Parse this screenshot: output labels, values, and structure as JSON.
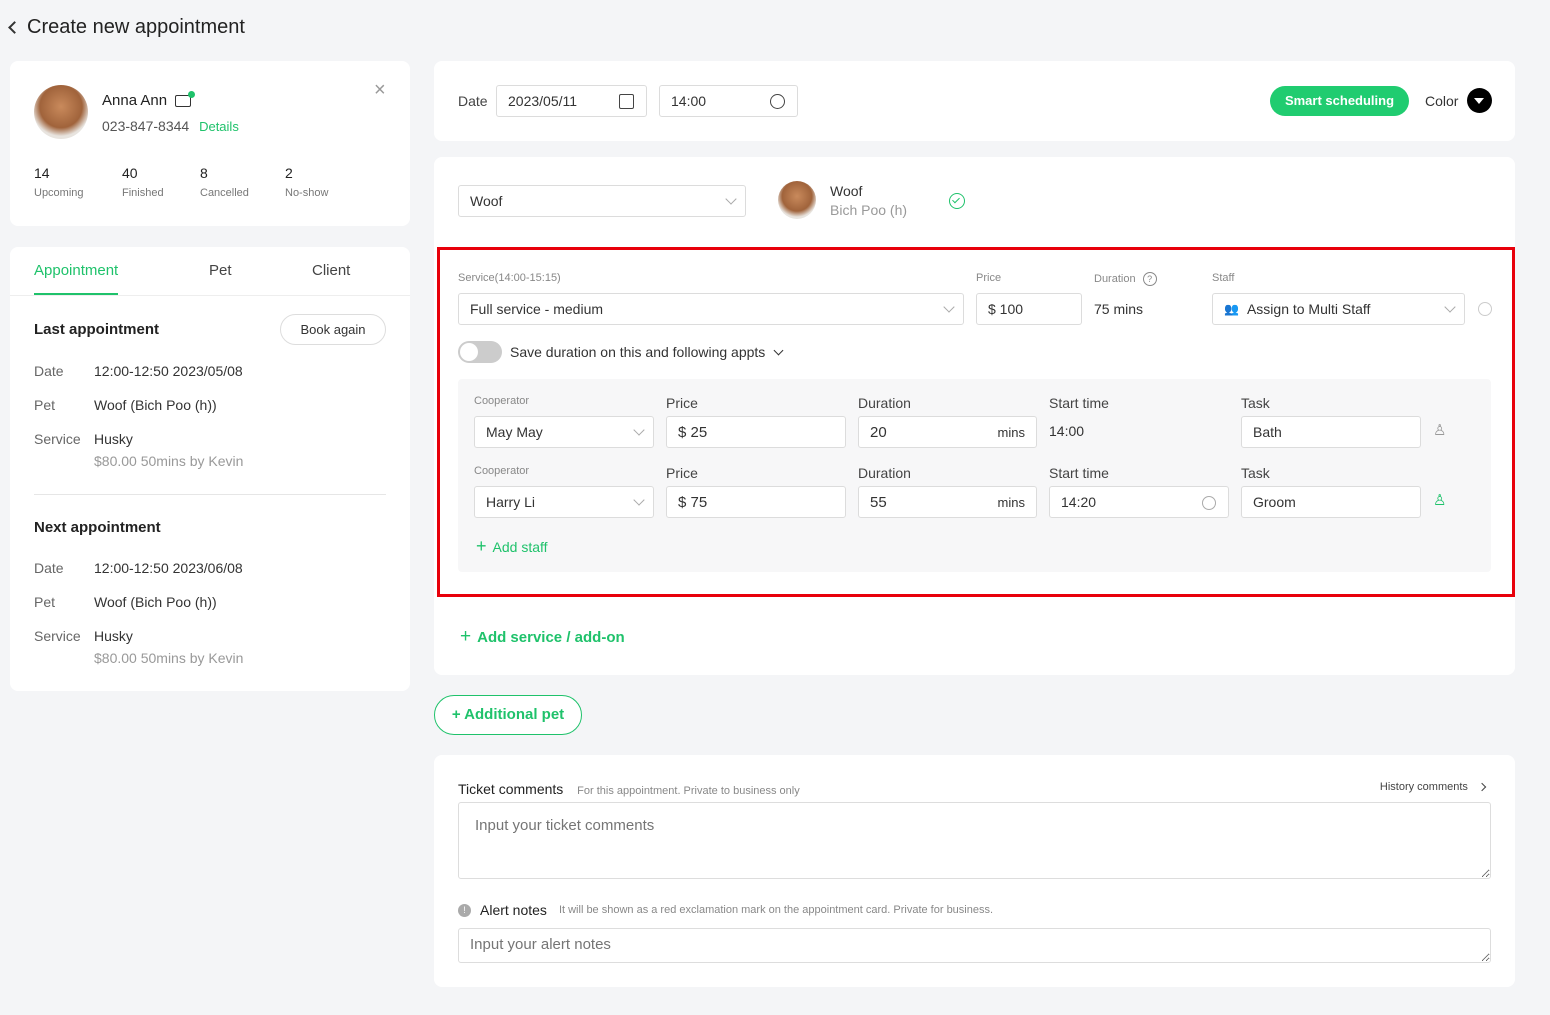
{
  "header": {
    "title": "Create new appointment"
  },
  "client": {
    "name": "Anna Ann",
    "phone": "023-847-8344",
    "details": "Details",
    "stats": [
      {
        "value": "14",
        "label": "Upcoming"
      },
      {
        "value": "40",
        "label": "Finished"
      },
      {
        "value": "8",
        "label": "Cancelled"
      },
      {
        "value": "2",
        "label": "No-show"
      }
    ]
  },
  "tabs": [
    {
      "label": "Appointment",
      "active": true
    },
    {
      "label": "Pet"
    },
    {
      "label": "Client"
    }
  ],
  "last": {
    "title": "Last appointment",
    "book_again": "Book again",
    "date_label": "Date",
    "date": "12:00-12:50 2023/05/08",
    "pet_label": "Pet",
    "pet": "Woof (Bich Poo (h))",
    "service_label": "Service",
    "service": "Husky",
    "detail": "$80.00  50mins by Kevin"
  },
  "next": {
    "title": "Next appointment",
    "date_label": "Date",
    "date": "12:00-12:50 2023/06/08",
    "pet_label": "Pet",
    "pet": "Woof (Bich Poo (h))",
    "service_label": "Service",
    "service": "Husky",
    "detail": "$80.00  50mins by Kevin"
  },
  "top": {
    "date_label": "Date",
    "date": "2023/05/11",
    "time": "14:00",
    "smart": "Smart scheduling",
    "color_label": "Color"
  },
  "pet": {
    "select": "Woof",
    "name": "Woof",
    "breed": "Bich Poo (h)"
  },
  "service": {
    "label": "Service(14:00-15:15)",
    "value": "Full service - medium",
    "price_label": "Price",
    "price": "$ 100",
    "duration_label": "Duration",
    "duration": "75 mins",
    "staff_label": "Staff",
    "staff": "Assign to Multi Staff",
    "toggle_label": "Save duration on this and following appts",
    "toggle_on": false
  },
  "staff_rows": [
    {
      "coop_label": "Cooperator",
      "coop": "May May",
      "price_label": "Price",
      "price": "$ 25",
      "duration_label": "Duration",
      "duration": "20",
      "unit": "mins",
      "start_label": "Start time",
      "start": "14:00",
      "task_label": "Task",
      "task": "Bath"
    },
    {
      "coop_label": "Cooperator",
      "coop": "Harry Li",
      "price_label": "Price",
      "price": "$ 75",
      "duration_label": "Duration",
      "duration": "55",
      "unit": "mins",
      "start_label": "Start time",
      "start": "14:20",
      "task_label": "Task",
      "task": "Groom"
    }
  ],
  "add_staff": "Add staff",
  "add_service": "Add service / add-on",
  "additional_pet": "+ Additional pet",
  "comments": {
    "title": "Ticket comments",
    "hint": "For this appointment. Private to business only",
    "history": "History comments",
    "placeholder": "Input your ticket comments",
    "alert_title": "Alert notes",
    "alert_hint": "It will be shown as a red exclamation mark on the appointment card. Private for business.",
    "alert_placeholder": "Input your alert notes"
  },
  "colors": {
    "accent": "#1fc26b",
    "highlight": "#e8000b"
  }
}
